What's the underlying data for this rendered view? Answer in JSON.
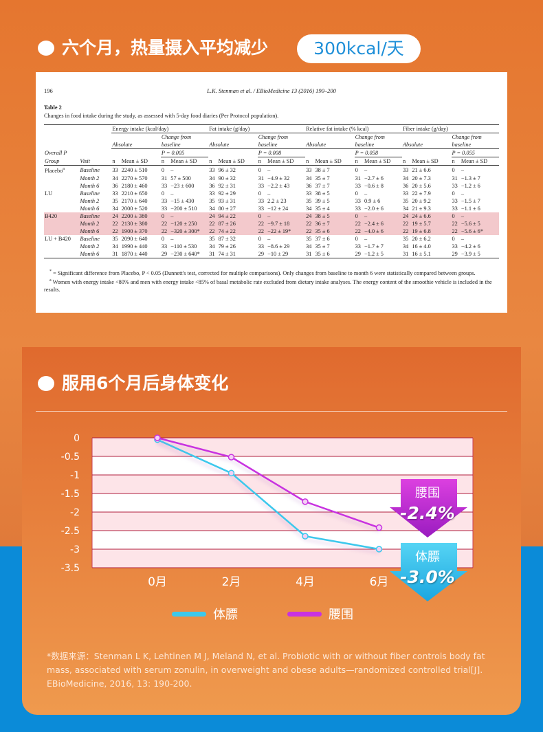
{
  "top_heading": {
    "text": "六个月，热量摄入平均减少",
    "highlight": "300kcal/天"
  },
  "paper": {
    "page": "196",
    "running_head": "L.K. Stenman et al. / EBioMedicine 13 (2016) 190–200",
    "table_label": "Table 2",
    "caption": "Changes in food intake during the study, as assessed with 5-day food diaries (Per Protocol population).",
    "groups": [
      "Energy intake (kcal/day)",
      "Fat intake (g/day)",
      "Relative fat intake (% kcal)",
      "Fiber intake (g/day)"
    ],
    "sub_headers": [
      "Absolute",
      "Change from baseline"
    ],
    "p_label": "Overall P",
    "p_values": [
      "P = 0.005",
      "P = 0.008",
      "P = 0.058",
      "P = 0.055"
    ],
    "col_labels": [
      "Group",
      "Visit",
      "n",
      "Mean ± SD"
    ],
    "blocks": [
      {
        "group": "Placebo",
        "group_note": "a",
        "rows": [
          {
            "visit": "Baseline",
            "cells": [
              "33",
              "2240 ± 510",
              "0",
              "–",
              "33",
              "96 ± 32",
              "0",
              "–",
              "33",
              "38 ± 7",
              "0",
              "–",
              "33",
              "21 ± 6.6",
              "0",
              "–"
            ]
          },
          {
            "visit": "Month 2",
            "cells": [
              "34",
              "2270 ± 570",
              "31",
              "57 ± 500",
              "34",
              "90 ± 32",
              "31",
              "−4.9 ± 32",
              "34",
              "35 ± 7",
              "31",
              "−2.7 ± 6",
              "34",
              "20 ± 7.3",
              "31",
              "−1.3 ± 7"
            ]
          },
          {
            "visit": "Month 6",
            "cells": [
              "36",
              "2180 ± 460",
              "33",
              "−23 ± 600",
              "36",
              "92 ± 31",
              "33",
              "−2.2 ± 43",
              "36",
              "37 ± 7",
              "33",
              "−0.6 ± 8",
              "36",
              "20 ± 5.6",
              "33",
              "−1.2 ± 6"
            ]
          }
        ]
      },
      {
        "group": "LU",
        "rows": [
          {
            "visit": "Baseline",
            "cells": [
              "33",
              "2210 ± 650",
              "0",
              "–",
              "33",
              "92 ± 29",
              "0",
              "–",
              "33",
              "38 ± 5",
              "0",
              "–",
              "33",
              "22 ± 7.9",
              "0",
              "–"
            ]
          },
          {
            "visit": "Month 2",
            "cells": [
              "35",
              "2170 ± 640",
              "33",
              "−15 ± 430",
              "35",
              "93 ± 31",
              "33",
              "2.2 ± 23",
              "35",
              "39 ± 5",
              "33",
              "0.9 ± 6",
              "35",
              "20 ± 9.2",
              "33",
              "−1.5 ± 7"
            ]
          },
          {
            "visit": "Month 6",
            "cells": [
              "34",
              "2000 ± 520",
              "33",
              "−200 ± 510",
              "34",
              "80 ± 27",
              "33",
              "−12 ± 24",
              "34",
              "35 ± 4",
              "33",
              "−2.0 ± 6",
              "34",
              "21 ± 9.3",
              "33",
              "−1.1 ± 6"
            ]
          }
        ]
      },
      {
        "group": "B420",
        "rows": [
          {
            "visit": "Baseline",
            "cells": [
              "24",
              "2200 ± 380",
              "0",
              "–",
              "24",
              "94 ± 22",
              "0",
              "–",
              "24",
              "38 ± 5",
              "0",
              "–",
              "24",
              "24 ± 6.6",
              "0",
              "–"
            ]
          },
          {
            "visit": "Month 2",
            "cells": [
              "22",
              "2130 ± 380",
              "22",
              "−120 ± 250",
              "22",
              "87 ± 26",
              "22",
              "−9.7 ± 18",
              "22",
              "36 ± 7",
              "22",
              "−2.4 ± 6",
              "22",
              "19 ± 5.7",
              "22",
              "−5.6 ± 5"
            ]
          },
          {
            "visit": "Month 6",
            "cells": [
              "22",
              "1900 ± 370",
              "22",
              "−320 ± 300*",
              "22",
              "74 ± 22",
              "22",
              "−22 ± 19*",
              "22",
              "35 ± 6",
              "22",
              "−4.0 ± 6",
              "22",
              "19 ± 6.8",
              "22",
              "−5.6 ± 6*"
            ]
          }
        ]
      },
      {
        "group": "LU + B420",
        "rows": [
          {
            "visit": "Baseline",
            "cells": [
              "35",
              "2090 ± 640",
              "0",
              "–",
              "35",
              "87 ± 32",
              "0",
              "–",
              "35",
              "37 ± 6",
              "0",
              "–",
              "35",
              "20 ± 6.2",
              "0",
              "–"
            ]
          },
          {
            "visit": "Month 2",
            "cells": [
              "34",
              "1990 ± 440",
              "33",
              "−110 ± 530",
              "34",
              "79 ± 26",
              "33",
              "−8.6 ± 29",
              "34",
              "35 ± 7",
              "33",
              "−1.7 ± 7",
              "34",
              "16 ± 4.0",
              "33",
              "−4.2 ± 6"
            ]
          },
          {
            "visit": "Month 6",
            "cells": [
              "31",
              "1870 ± 440",
              "29",
              "−230 ± 640*",
              "31",
              "74 ± 31",
              "29",
              "−10 ± 29",
              "31",
              "35 ± 6",
              "29",
              "−1.2 ± 5",
              "31",
              "16 ± 5.1",
              "29",
              "−3.9 ± 5"
            ]
          }
        ]
      }
    ],
    "footnotes": [
      {
        "mark": "*",
        "text": "= Significant difference from Placebo, P < 0.05 (Dunnett's test, corrected for multiple comparisons). Only changes from baseline to month 6 were statistically compared between groups."
      },
      {
        "mark": "a",
        "text": "Women with energy intake <80% and men with energy intake <85% of basal metabolic rate excluded from dietary intake analyses. The energy content of the smoothie vehicle is included in the results."
      }
    ]
  },
  "section2_heading": "服用6个月后身体变化",
  "chart_data": {
    "type": "line",
    "categories": [
      "0月",
      "2月",
      "4月",
      "6月"
    ],
    "series": [
      {
        "name": "体膘",
        "color": "#3cc8ec",
        "values": [
          -0.05,
          -0.95,
          -2.65,
          -3.0
        ]
      },
      {
        "name": "腰围",
        "color": "#c832e0",
        "values": [
          0,
          -0.52,
          -1.72,
          -2.42
        ]
      }
    ],
    "ylim": [
      -3.5,
      0
    ],
    "yticks": [
      0,
      -0.5,
      -1,
      -1.5,
      -2,
      -2.5,
      -3,
      -3.5
    ],
    "grid": true,
    "annotations": [
      {
        "text": "-2.4%"
      },
      {
        "text": "-3.0%"
      }
    ]
  },
  "source_note": [
    "*数据来源：Stenman L K, Lehtinen M J, Meland N, et al. Probiotic with or without fiber controls body fat",
    " mass, associated with serum zonulin, in overweight and obese adults—randomized controlled trial[J].",
    "EBioMedicine, 2016, 13: 190-200."
  ]
}
